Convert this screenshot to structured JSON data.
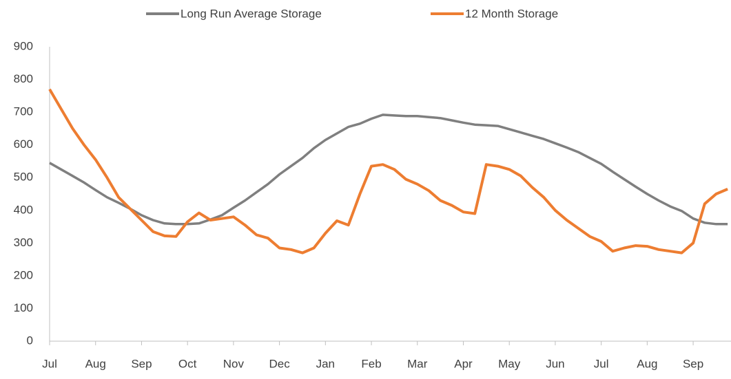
{
  "chart_data": {
    "type": "line",
    "categories": [
      "Jul",
      null,
      null,
      null,
      "Aug",
      null,
      null,
      null,
      "Sep",
      null,
      null,
      null,
      "Oct",
      null,
      null,
      null,
      "Nov",
      null,
      null,
      null,
      "Dec",
      null,
      null,
      null,
      "Jan",
      null,
      null,
      null,
      "Feb",
      null,
      null,
      null,
      "Mar",
      null,
      null,
      null,
      "Apr",
      null,
      null,
      null,
      "May",
      null,
      null,
      null,
      "Jun",
      null,
      null,
      null,
      "Jul",
      null,
      null,
      null,
      "Aug",
      null,
      null,
      null,
      "Sep",
      null,
      null,
      null
    ],
    "series": [
      {
        "name": "Long Run Average Storage",
        "color": "#7f7f7f",
        "values": [
          545,
          525,
          505,
          485,
          462,
          440,
          423,
          405,
          385,
          370,
          360,
          358,
          358,
          360,
          372,
          385,
          408,
          430,
          455,
          480,
          510,
          535,
          560,
          590,
          615,
          635,
          655,
          665,
          680,
          692,
          690,
          688,
          688,
          685,
          682,
          675,
          668,
          662,
          660,
          658,
          648,
          638,
          628,
          618,
          605,
          592,
          578,
          560,
          542,
          518,
          495,
          472,
          450,
          430,
          412,
          398,
          375,
          362,
          358,
          358
        ]
      },
      {
        "name": "12 Month Storage",
        "color": "#ed7d31",
        "values": [
          770,
          710,
          650,
          600,
          555,
          500,
          440,
          405,
          370,
          335,
          322,
          320,
          365,
          392,
          370,
          375,
          380,
          355,
          325,
          315,
          285,
          280,
          270,
          285,
          330,
          368,
          355,
          450,
          535,
          540,
          525,
          495,
          480,
          460,
          430,
          415,
          395,
          390,
          540,
          535,
          525,
          505,
          470,
          440,
          400,
          370,
          345,
          320,
          305,
          275,
          285,
          292,
          290,
          280,
          275,
          270,
          300,
          420,
          450,
          465
        ]
      }
    ],
    "ylim": [
      0,
      900
    ],
    "yticks": [
      0,
      100,
      200,
      300,
      400,
      500,
      600,
      700,
      800,
      900
    ],
    "grid": false,
    "legend": "top"
  }
}
